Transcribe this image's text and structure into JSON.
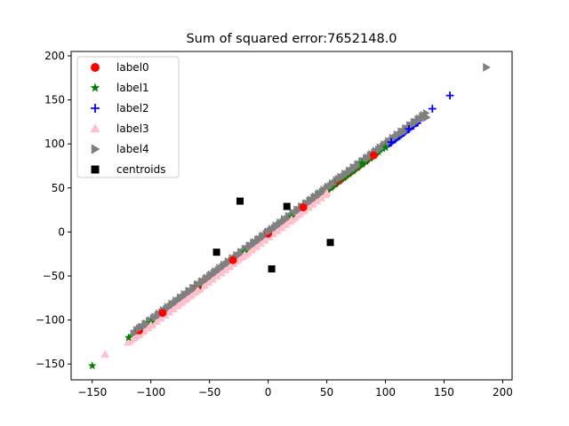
{
  "chart_data": {
    "type": "scatter",
    "title": "Sum of squared error:7652148.0",
    "xlabel": "",
    "ylabel": "",
    "xlim": [
      -168,
      208
    ],
    "ylim": [
      -168,
      205
    ],
    "xticks": [
      -150,
      -100,
      -50,
      0,
      50,
      100,
      150,
      200
    ],
    "yticks": [
      -150,
      -100,
      -50,
      0,
      50,
      100,
      150,
      200
    ],
    "xtick_labels": [
      "−150",
      "−100",
      "−50",
      "0",
      "50",
      "100",
      "150",
      "200"
    ],
    "ytick_labels": [
      "−150",
      "−100",
      "−50",
      "0",
      "50",
      "100",
      "150",
      "200"
    ],
    "grid": false,
    "legend_position": "upper-left",
    "series": [
      {
        "name": "label0",
        "marker": "circle",
        "color": "#ff0000",
        "band": {
          "x_start": -115,
          "x_end": 95,
          "slope": 1.0,
          "intercept": -2,
          "spread": 2
        },
        "x": [
          -110,
          -90,
          -60,
          -30,
          0,
          30,
          60,
          90
        ],
        "y": [
          -112,
          -92,
          -62,
          -32,
          -2,
          28,
          58,
          87
        ]
      },
      {
        "name": "label1",
        "marker": "star",
        "color": "#008000",
        "band": {
          "x_start": -118,
          "x_end": 100,
          "slope": 1.0,
          "intercept": -3,
          "spread": 2
        },
        "x": [
          -150,
          -119,
          -100,
          -60,
          -20,
          20,
          60,
          80,
          100
        ],
        "y": [
          -152,
          -120,
          -103,
          -63,
          -23,
          17,
          58,
          78,
          96
        ]
      },
      {
        "name": "label2",
        "marker": "plus",
        "color": "#0000ff",
        "band": {
          "x_start": 100,
          "x_end": 130,
          "slope": 1.0,
          "intercept": -3,
          "spread": 2
        },
        "x": [
          105,
          120,
          140,
          155
        ],
        "y": [
          102,
          117,
          140,
          155
        ]
      },
      {
        "name": "label3",
        "marker": "triangle-up",
        "color": "#ffc0cb",
        "band": {
          "x_start": -120,
          "x_end": 50,
          "slope": 1.0,
          "intercept": -6,
          "spread": 3
        },
        "x": [
          -139,
          -100,
          -60,
          -20,
          20,
          50
        ],
        "y": [
          -139,
          -106,
          -66,
          -26,
          14,
          44
        ]
      },
      {
        "name": "label4",
        "marker": "triangle-right",
        "color": "#808080",
        "band": {
          "x_start": -115,
          "x_end": 135,
          "slope": 1.0,
          "intercept": 0,
          "spread": 3
        },
        "x": [
          -110,
          -60,
          0,
          60,
          115,
          135,
          186
        ],
        "y": [
          -110,
          -60,
          0,
          60,
          113,
          130,
          187
        ]
      },
      {
        "name": "centroids",
        "marker": "square",
        "color": "#000000",
        "x": [
          -24,
          -44,
          16,
          53,
          3
        ],
        "y": [
          35,
          -23,
          29,
          -12,
          -42
        ]
      }
    ]
  }
}
